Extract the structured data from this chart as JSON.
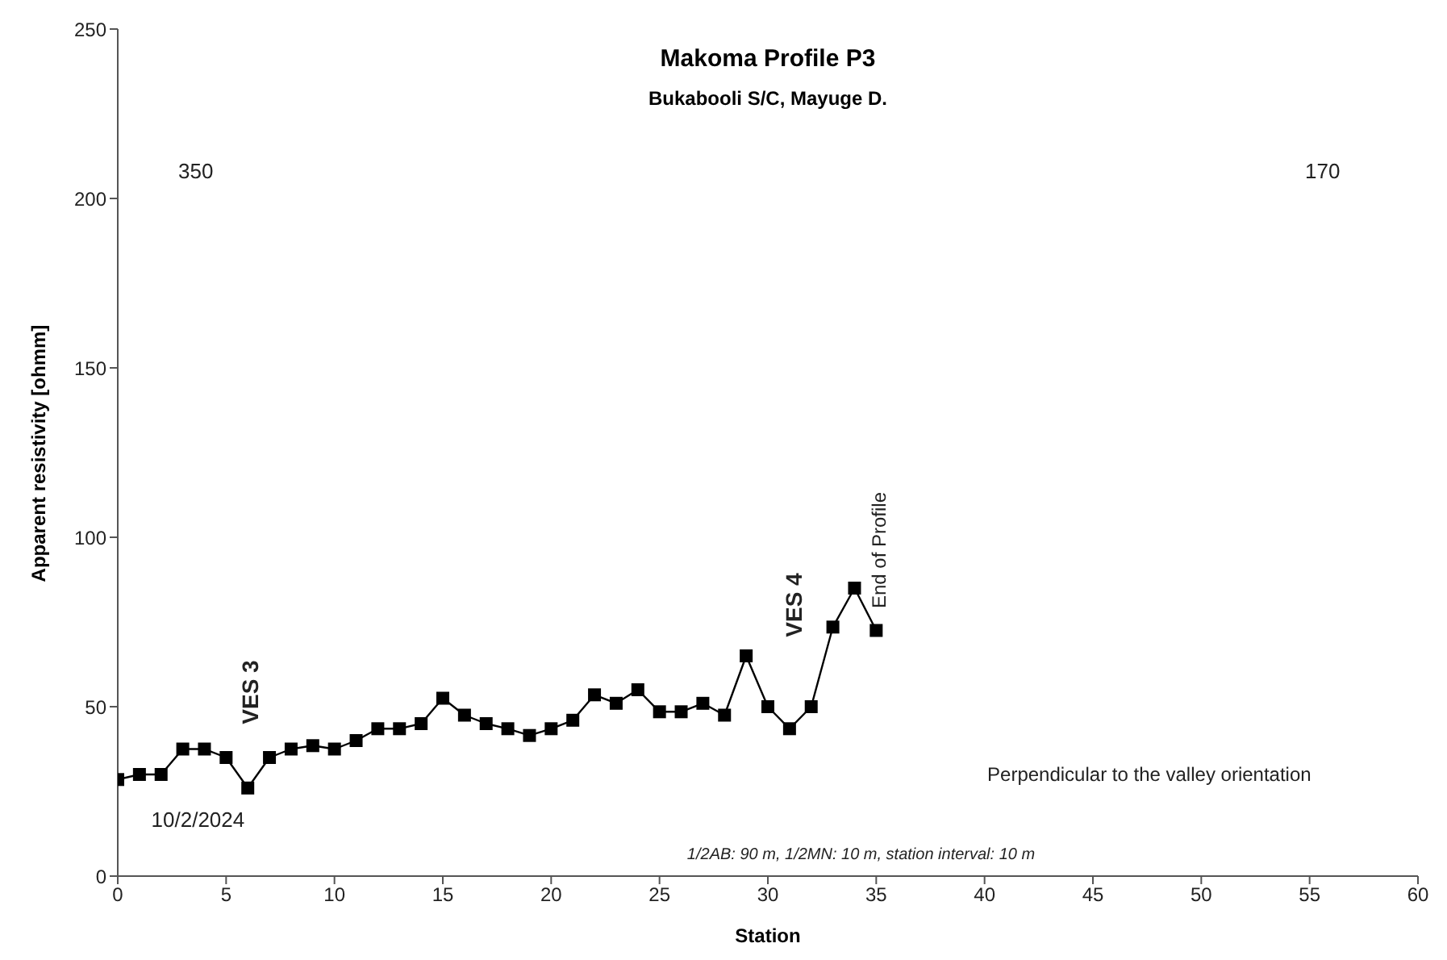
{
  "chart_data": {
    "type": "line",
    "title": "Makoma Profile P3",
    "subtitle": "Bukabooli S/C, Mayuge D.",
    "xlabel": "Station",
    "ylabel": "Apparent resistivity [ohmm]",
    "x": [
      0,
      1,
      2,
      3,
      4,
      5,
      6,
      7,
      8,
      9,
      10,
      11,
      12,
      13,
      14,
      15,
      16,
      17,
      18,
      19,
      20,
      21,
      22,
      23,
      24,
      25,
      26,
      27,
      28,
      29,
      30,
      31,
      32,
      33,
      34,
      35
    ],
    "series": [
      {
        "color": "#000000",
        "values": [
          28.5,
          30,
          30,
          37.5,
          37.5,
          35,
          26,
          35,
          37.5,
          38.5,
          37.5,
          40,
          43.5,
          43.5,
          45,
          52.5,
          47.5,
          45,
          43.5,
          41.5,
          43.5,
          46,
          53.5,
          51,
          55,
          48.5,
          48.5,
          51,
          47.5,
          65,
          50,
          43.5,
          50,
          73.5,
          85,
          72.5
        ]
      }
    ],
    "xlim": [
      0,
      60
    ],
    "xticks": [
      0,
      5,
      10,
      15,
      20,
      25,
      30,
      35,
      40,
      45,
      50,
      55,
      60
    ],
    "ylim": [
      0,
      250
    ],
    "yticks": [
      0,
      50,
      100,
      150,
      200,
      250
    ],
    "marker": "square",
    "grid": false,
    "legend": false,
    "annotations": [
      "350",
      "170",
      "10/2/2024",
      "VES 3",
      "VES 4",
      "End of Profile",
      "Perpendicular to the valley orientation",
      "1/2AB: 90 m, 1/2MN: 10 m, station interval: 10 m"
    ]
  }
}
